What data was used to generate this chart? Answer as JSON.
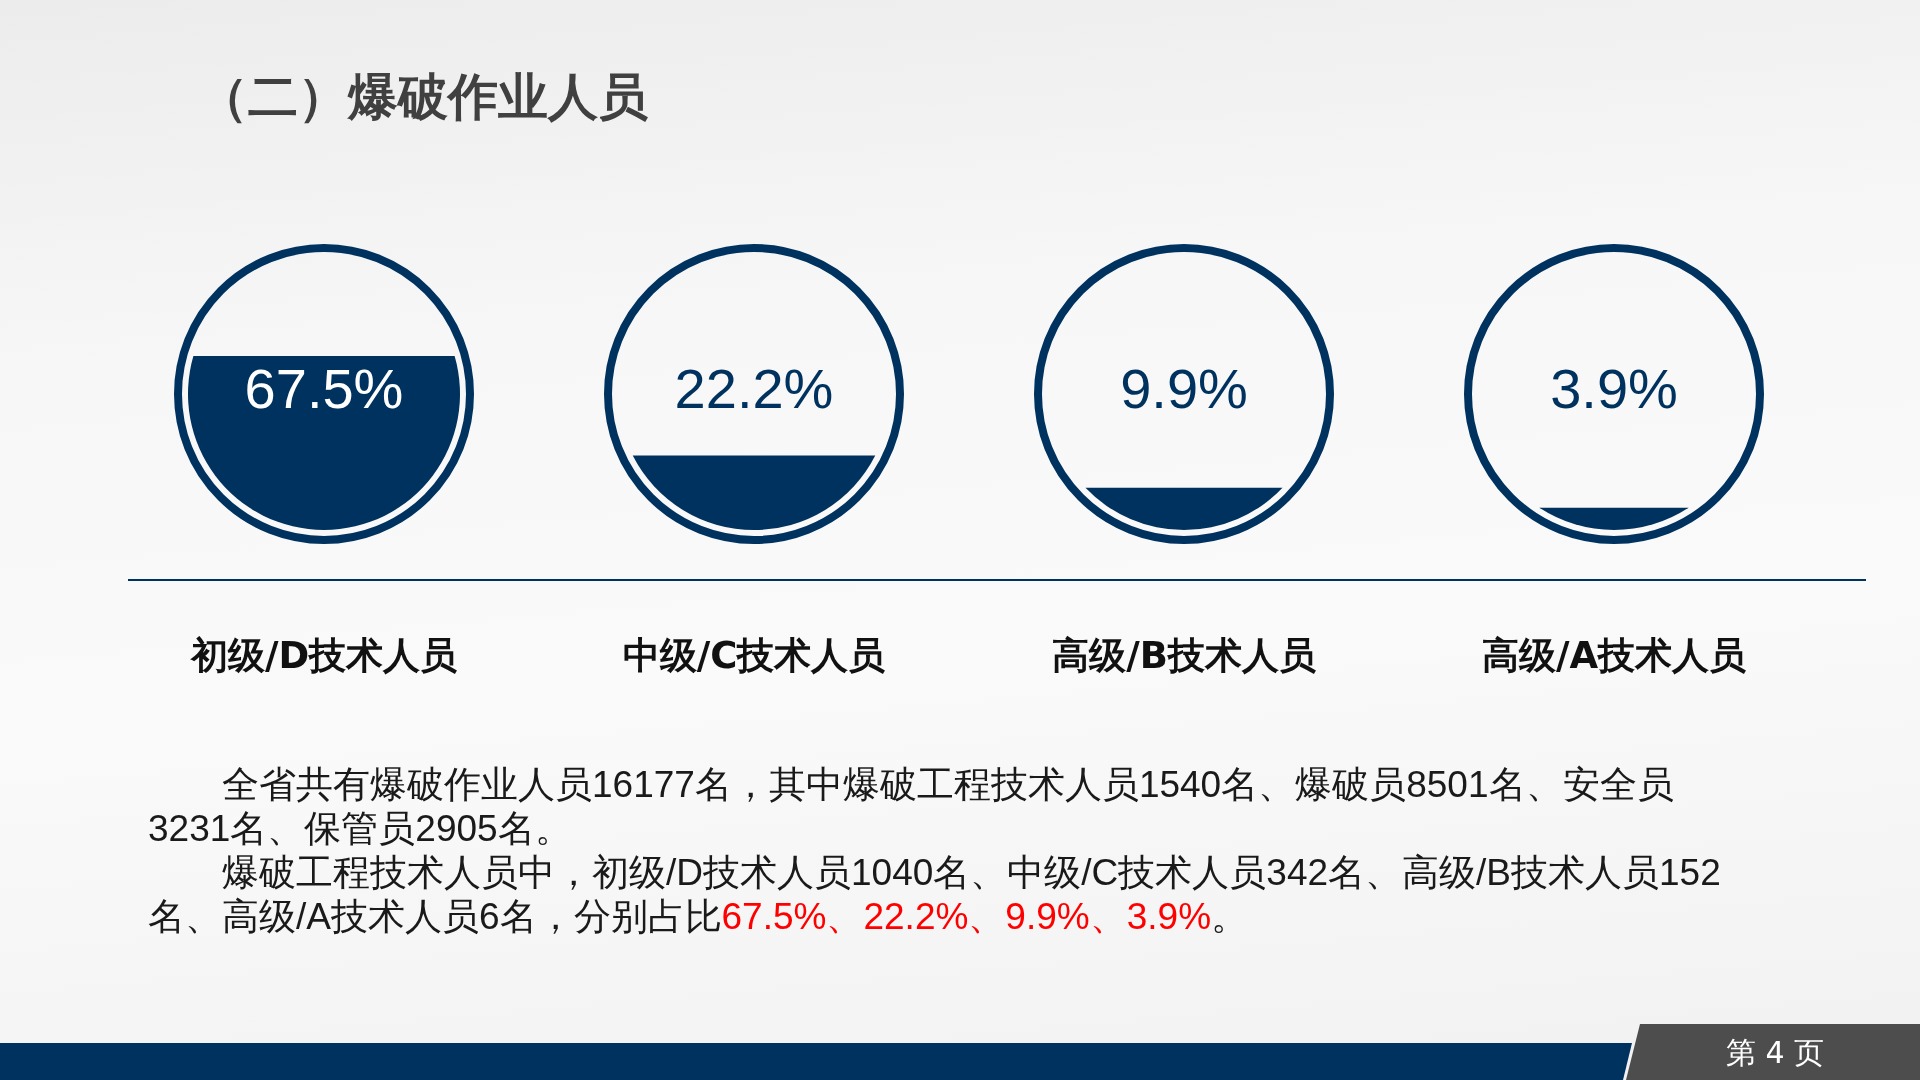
{
  "chart_data": {
    "type": "other",
    "title": "（二）爆破作业人员",
    "categories": [
      "初级/D技术人员",
      "中级/C技术人员",
      "高级/B技术人员",
      "高级/A技术人员"
    ],
    "values": [
      67.5,
      22.2,
      9.9,
      3.9
    ],
    "value_labels": [
      "67.5%",
      "22.2%",
      "9.9%",
      "3.9%"
    ],
    "color": "#00325f",
    "annotations": [
      "全省共有爆破作业人员16177名，其中爆破工程技术人员1540名、爆破员8501名、安全员3231名、保管员2905名。",
      "爆破工程技术人员中，初级/D技术人员1040名、中级/C技术人员342名、高级/B技术人员152",
      "名、高级/A技术人员6名，分别占比",
      "67.5%、22.2%、9.9%、3.9%",
      "。",
      "第 4 页"
    ]
  }
}
